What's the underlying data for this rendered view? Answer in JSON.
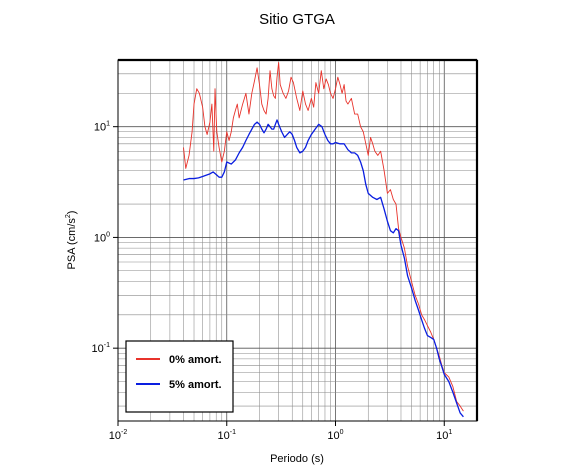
{
  "chart_data": {
    "type": "line",
    "title": "Sitio GTGA",
    "xlabel": "Periodo (s)",
    "ylabel_main": "PSA (cm/s",
    "ylabel_sup": "2",
    "ylabel_end": ")",
    "xscale": "log",
    "yscale": "log",
    "xlim": [
      0.01,
      20
    ],
    "ylim": [
      0.022,
      40
    ],
    "grid": true,
    "legend_position": "bottom-left",
    "x_ticks": [
      {
        "value": 0.01,
        "base": "10",
        "exp": "-2"
      },
      {
        "value": 0.1,
        "base": "10",
        "exp": "-1"
      },
      {
        "value": 1,
        "base": "10",
        "exp": "0"
      },
      {
        "value": 10,
        "base": "10",
        "exp": "1"
      }
    ],
    "y_ticks": [
      {
        "value": 0.1,
        "base": "10",
        "exp": "-1"
      },
      {
        "value": 1,
        "base": "10",
        "exp": "0"
      },
      {
        "value": 10,
        "base": "10",
        "exp": "1"
      }
    ],
    "series": [
      {
        "name": "0% amort.",
        "color": "#e8332b",
        "points": [
          [
            0.04,
            6.5
          ],
          [
            0.042,
            4.2
          ],
          [
            0.045,
            5.5
          ],
          [
            0.048,
            9
          ],
          [
            0.05,
            16
          ],
          [
            0.053,
            22
          ],
          [
            0.056,
            20
          ],
          [
            0.06,
            15
          ],
          [
            0.063,
            10
          ],
          [
            0.066,
            8.5
          ],
          [
            0.07,
            11
          ],
          [
            0.073,
            16
          ],
          [
            0.076,
            6
          ],
          [
            0.078,
            22
          ],
          [
            0.081,
            9
          ],
          [
            0.085,
            6.5
          ],
          [
            0.09,
            4.8
          ],
          [
            0.095,
            6
          ],
          [
            0.1,
            9
          ],
          [
            0.105,
            7.5
          ],
          [
            0.11,
            9
          ],
          [
            0.115,
            12
          ],
          [
            0.12,
            14
          ],
          [
            0.125,
            16
          ],
          [
            0.13,
            12
          ],
          [
            0.14,
            16
          ],
          [
            0.15,
            20
          ],
          [
            0.16,
            13
          ],
          [
            0.17,
            20
          ],
          [
            0.18,
            26
          ],
          [
            0.19,
            34
          ],
          [
            0.2,
            24
          ],
          [
            0.21,
            16
          ],
          [
            0.22,
            14
          ],
          [
            0.23,
            13
          ],
          [
            0.24,
            18
          ],
          [
            0.25,
            32
          ],
          [
            0.26,
            22
          ],
          [
            0.27,
            19
          ],
          [
            0.28,
            18
          ],
          [
            0.29,
            28
          ],
          [
            0.3,
            38
          ],
          [
            0.31,
            24
          ],
          [
            0.33,
            20
          ],
          [
            0.35,
            18
          ],
          [
            0.37,
            21
          ],
          [
            0.39,
            28
          ],
          [
            0.41,
            25
          ],
          [
            0.44,
            18
          ],
          [
            0.47,
            14
          ],
          [
            0.5,
            21
          ],
          [
            0.53,
            16
          ],
          [
            0.56,
            14
          ],
          [
            0.6,
            18
          ],
          [
            0.63,
            15
          ],
          [
            0.66,
            25
          ],
          [
            0.7,
            20
          ],
          [
            0.74,
            32
          ],
          [
            0.78,
            22
          ],
          [
            0.82,
            27
          ],
          [
            0.86,
            24
          ],
          [
            0.9,
            20
          ],
          [
            0.95,
            18
          ],
          [
            1.0,
            22
          ],
          [
            1.05,
            28
          ],
          [
            1.1,
            24
          ],
          [
            1.15,
            20
          ],
          [
            1.2,
            24
          ],
          [
            1.25,
            17
          ],
          [
            1.3,
            16
          ],
          [
            1.4,
            18
          ],
          [
            1.5,
            13
          ],
          [
            1.6,
            13
          ],
          [
            1.7,
            10
          ],
          [
            1.8,
            9
          ],
          [
            1.9,
            7
          ],
          [
            2.0,
            5.5
          ],
          [
            2.1,
            8
          ],
          [
            2.2,
            7
          ],
          [
            2.3,
            6
          ],
          [
            2.45,
            5.5
          ],
          [
            2.6,
            6
          ],
          [
            2.8,
            4
          ],
          [
            3.0,
            2.5
          ],
          [
            3.2,
            2.7
          ],
          [
            3.4,
            2.2
          ],
          [
            3.6,
            2
          ],
          [
            3.8,
            1.2
          ],
          [
            4.0,
            1.0
          ],
          [
            4.3,
            0.8
          ],
          [
            4.6,
            0.55
          ],
          [
            5.0,
            0.4
          ],
          [
            5.4,
            0.3
          ],
          [
            5.8,
            0.25
          ],
          [
            6.2,
            0.2
          ],
          [
            6.6,
            0.18
          ],
          [
            7.0,
            0.16
          ],
          [
            7.5,
            0.14
          ],
          [
            8.0,
            0.12
          ],
          [
            8.5,
            0.1
          ],
          [
            9.0,
            0.085
          ],
          [
            9.5,
            0.07
          ],
          [
            10.0,
            0.06
          ],
          [
            11.0,
            0.055
          ],
          [
            12.0,
            0.045
          ],
          [
            13.0,
            0.033
          ],
          [
            14.0,
            0.03
          ],
          [
            15.0,
            0.027
          ]
        ]
      },
      {
        "name": "5% amort.",
        "color": "#0a1ee0",
        "points": [
          [
            0.04,
            3.3
          ],
          [
            0.045,
            3.4
          ],
          [
            0.05,
            3.4
          ],
          [
            0.055,
            3.45
          ],
          [
            0.06,
            3.55
          ],
          [
            0.065,
            3.65
          ],
          [
            0.07,
            3.75
          ],
          [
            0.075,
            3.9
          ],
          [
            0.08,
            3.7
          ],
          [
            0.085,
            3.5
          ],
          [
            0.09,
            3.5
          ],
          [
            0.095,
            3.9
          ],
          [
            0.1,
            4.8
          ],
          [
            0.11,
            4.6
          ],
          [
            0.12,
            5.0
          ],
          [
            0.13,
            5.8
          ],
          [
            0.14,
            6.5
          ],
          [
            0.15,
            7.5
          ],
          [
            0.16,
            8.5
          ],
          [
            0.17,
            9.5
          ],
          [
            0.18,
            10.5
          ],
          [
            0.19,
            11
          ],
          [
            0.2,
            10.5
          ],
          [
            0.21,
            9.5
          ],
          [
            0.22,
            8.8
          ],
          [
            0.23,
            9.5
          ],
          [
            0.24,
            10.5
          ],
          [
            0.25,
            10
          ],
          [
            0.26,
            9.5
          ],
          [
            0.27,
            9.5
          ],
          [
            0.28,
            10.5
          ],
          [
            0.29,
            11.5
          ],
          [
            0.3,
            10.5
          ],
          [
            0.32,
            9
          ],
          [
            0.34,
            8
          ],
          [
            0.36,
            8.5
          ],
          [
            0.38,
            9
          ],
          [
            0.4,
            8.5
          ],
          [
            0.42,
            7.5
          ],
          [
            0.44,
            6.5
          ],
          [
            0.47,
            5.8
          ],
          [
            0.5,
            6.0
          ],
          [
            0.53,
            6.5
          ],
          [
            0.56,
            7.5
          ],
          [
            0.6,
            8.5
          ],
          [
            0.65,
            9.5
          ],
          [
            0.7,
            10.5
          ],
          [
            0.75,
            10
          ],
          [
            0.8,
            8.5
          ],
          [
            0.85,
            7.5
          ],
          [
            0.9,
            7.0
          ],
          [
            0.95,
            7.0
          ],
          [
            1.0,
            7.2
          ],
          [
            1.1,
            7.0
          ],
          [
            1.2,
            7.0
          ],
          [
            1.3,
            6.2
          ],
          [
            1.4,
            5.8
          ],
          [
            1.5,
            5.8
          ],
          [
            1.6,
            5.5
          ],
          [
            1.7,
            4.8
          ],
          [
            1.8,
            4.0
          ],
          [
            1.9,
            3.0
          ],
          [
            2.0,
            2.5
          ],
          [
            2.2,
            2.3
          ],
          [
            2.4,
            2.2
          ],
          [
            2.6,
            2.3
          ],
          [
            2.8,
            1.8
          ],
          [
            3.0,
            1.4
          ],
          [
            3.2,
            1.15
          ],
          [
            3.4,
            1.1
          ],
          [
            3.6,
            1.2
          ],
          [
            3.8,
            1.15
          ],
          [
            4.0,
            0.85
          ],
          [
            4.3,
            0.65
          ],
          [
            4.6,
            0.45
          ],
          [
            5.0,
            0.35
          ],
          [
            5.4,
            0.27
          ],
          [
            5.8,
            0.22
          ],
          [
            6.2,
            0.18
          ],
          [
            6.6,
            0.15
          ],
          [
            7.0,
            0.13
          ],
          [
            7.5,
            0.125
          ],
          [
            8.0,
            0.12
          ],
          [
            8.5,
            0.1
          ],
          [
            9.0,
            0.08
          ],
          [
            9.5,
            0.068
          ],
          [
            10.0,
            0.058
          ],
          [
            11.0,
            0.05
          ],
          [
            12.0,
            0.04
          ],
          [
            13.0,
            0.032
          ],
          [
            14.0,
            0.026
          ],
          [
            15.0,
            0.024
          ]
        ]
      }
    ]
  }
}
